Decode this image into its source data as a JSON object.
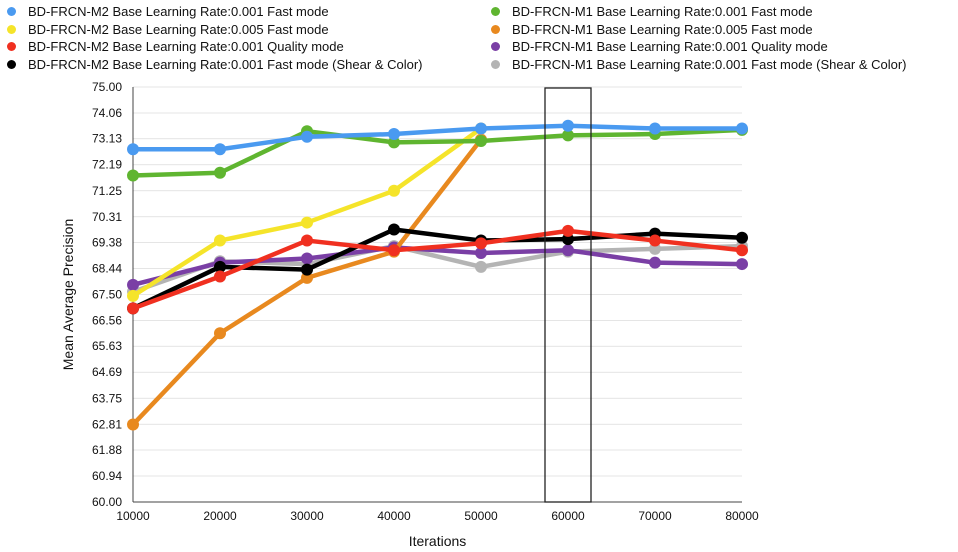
{
  "chart_data": {
    "type": "line",
    "title": "",
    "xlabel": "Iterations",
    "ylabel": "Mean Average Precision",
    "x": [
      10000,
      20000,
      30000,
      40000,
      50000,
      60000,
      70000,
      80000
    ],
    "xticks": [
      "10000",
      "20000",
      "30000",
      "40000",
      "50000",
      "60000",
      "70000",
      "80000"
    ],
    "yticks": [
      "60.00",
      "60.94",
      "61.88",
      "62.81",
      "63.75",
      "64.69",
      "65.63",
      "66.56",
      "67.50",
      "68.44",
      "69.38",
      "70.31",
      "71.25",
      "72.19",
      "73.13",
      "74.06",
      "75.00"
    ],
    "ylim": [
      60.0,
      75.0
    ],
    "grid": true,
    "legend_position": "top",
    "highlight_box_x": 60000,
    "series": [
      {
        "name": "BD-FRCN-M2 Base Learning Rate:0.001 Fast mode",
        "color": "#4a9af0",
        "values": [
          72.75,
          72.75,
          73.2,
          73.3,
          73.5,
          73.6,
          73.5,
          73.5
        ]
      },
      {
        "name": "BD-FRCN-M1 Base Learning Rate:0.001 Fast mode",
        "color": "#5fb530",
        "values": [
          71.8,
          71.9,
          73.4,
          73.0,
          73.05,
          73.25,
          73.3,
          73.45
        ]
      },
      {
        "name": "BD-FRCN-M2 Base Learning Rate:0.005 Fast mode",
        "color": "#f5e42a",
        "values": [
          67.45,
          69.45,
          70.1,
          71.25,
          73.5,
          null,
          null,
          null
        ]
      },
      {
        "name": "BD-FRCN-M1 Base Learning Rate:0.005 Fast mode",
        "color": "#e8891f",
        "values": [
          62.8,
          66.1,
          68.1,
          69.05,
          73.1,
          null,
          null,
          null
        ]
      },
      {
        "name": "BD-FRCN-M2 Base Learning Rate:0.001 Quality mode",
        "color": "#f03020",
        "values": [
          67.0,
          68.15,
          69.45,
          69.1,
          69.35,
          69.8,
          69.45,
          69.1
        ]
      },
      {
        "name": "BD-FRCN-M1 Base Learning Rate:0.001 Quality mode",
        "color": "#7a3fa5",
        "values": [
          67.85,
          68.65,
          68.8,
          69.2,
          69.0,
          69.1,
          68.65,
          68.6
        ]
      },
      {
        "name": "BD-FRCN-M2 Base Learning Rate:0.001 Fast mode (Shear & Color)",
        "color": "#000000",
        "values": [
          67.0,
          68.5,
          68.4,
          69.85,
          69.45,
          69.5,
          69.7,
          69.55
        ]
      },
      {
        "name": "BD-FRCN-M1 Base Learning Rate:0.001 Fast mode (Shear & Color)",
        "color": "#b4b4b4",
        "values": [
          67.6,
          68.7,
          68.6,
          69.25,
          68.5,
          69.05,
          69.15,
          69.25
        ]
      }
    ]
  }
}
